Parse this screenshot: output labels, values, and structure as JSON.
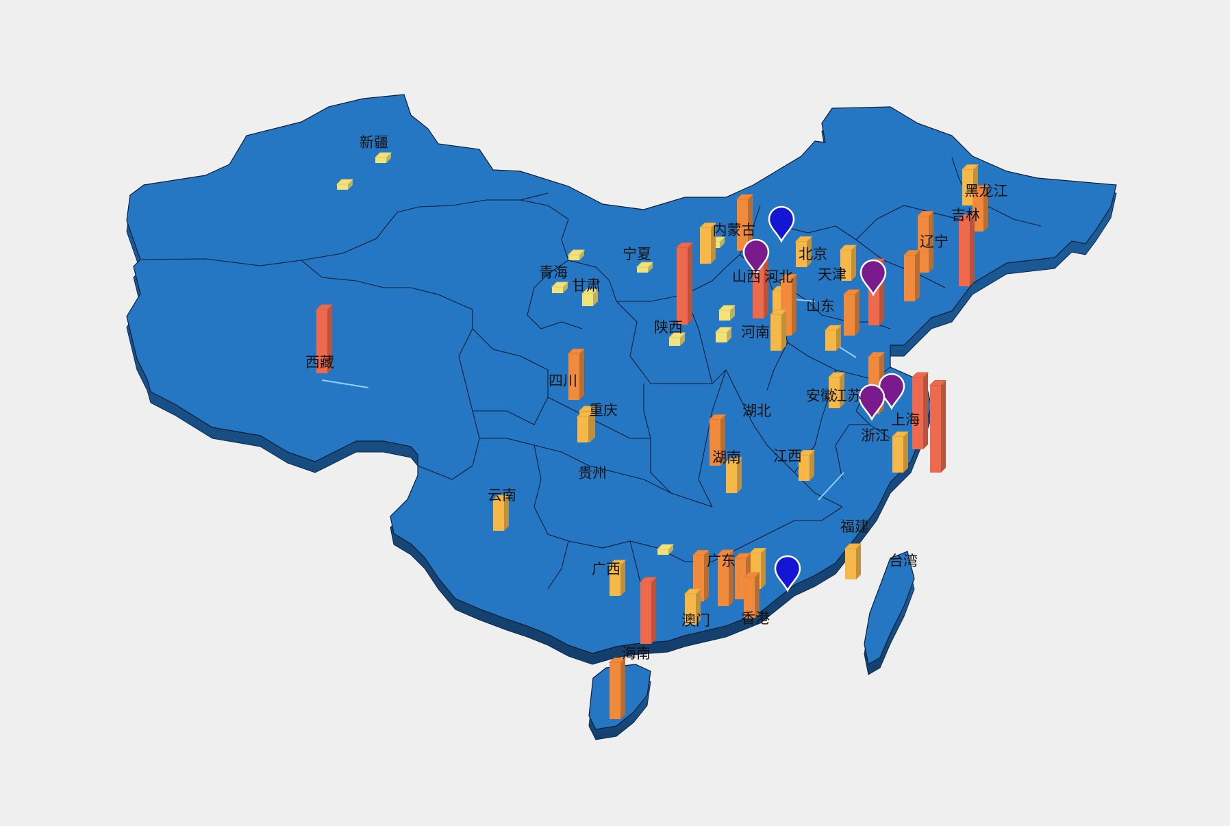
{
  "map": {
    "colors": {
      "land_top": "#2577c3",
      "land_side": "#1a5590",
      "border": "#0b1d33",
      "background": "#efefef",
      "bar_low": "#f2e27a",
      "bar_mid": "#f7b84a",
      "bar_high": "#f08a3c",
      "bar_max": "#ee6a4e",
      "pin_blue": "#1515d4",
      "pin_purple": "#7a1a8c",
      "flow_line": "#8fd2ff"
    },
    "provinces": [
      {
        "key": "xinjiang",
        "name": "新疆"
      },
      {
        "key": "xizang",
        "name": "西藏"
      },
      {
        "key": "qinghai",
        "name": "青海"
      },
      {
        "key": "gansu",
        "name": "甘肃"
      },
      {
        "key": "ningxia",
        "name": "宁夏"
      },
      {
        "key": "neimenggu",
        "name": "内蒙古"
      },
      {
        "key": "heilongjiang",
        "name": "黑龙江"
      },
      {
        "key": "jilin",
        "name": "吉林"
      },
      {
        "key": "liaoning",
        "name": "辽宁"
      },
      {
        "key": "beijing",
        "name": "北京"
      },
      {
        "key": "tianjin",
        "name": "天津"
      },
      {
        "key": "shanxi",
        "name": "山西"
      },
      {
        "key": "hebei",
        "name": "河北"
      },
      {
        "key": "shandong",
        "name": "山东"
      },
      {
        "key": "shaanxi",
        "name": "陕西"
      },
      {
        "key": "henan",
        "name": "河南"
      },
      {
        "key": "sichuan",
        "name": "四川"
      },
      {
        "key": "chongqing",
        "name": "重庆"
      },
      {
        "key": "hubei",
        "name": "湖北"
      },
      {
        "key": "anhui",
        "name": "安徽"
      },
      {
        "key": "jiangsu",
        "name": "江苏"
      },
      {
        "key": "shanghai",
        "name": "上海"
      },
      {
        "key": "zhejiang",
        "name": "浙江"
      },
      {
        "key": "hunan",
        "name": "湖南"
      },
      {
        "key": "jiangxi",
        "name": "江西"
      },
      {
        "key": "guizhou",
        "name": "贵州"
      },
      {
        "key": "yunnan",
        "name": "云南"
      },
      {
        "key": "fujian",
        "name": "福建"
      },
      {
        "key": "taiwan",
        "name": "台湾"
      },
      {
        "key": "guangxi",
        "name": "广西"
      },
      {
        "key": "guangdong",
        "name": "广东"
      },
      {
        "key": "aomen",
        "name": "澳门"
      },
      {
        "key": "xianggang",
        "name": "香港"
      },
      {
        "key": "hainan",
        "name": "海南"
      }
    ],
    "bars": [
      {
        "province": "xinjiang",
        "level": 0.04
      },
      {
        "province": "xinjiang",
        "level": 0.01
      },
      {
        "province": "xizang",
        "level": 0.62
      },
      {
        "province": "qinghai",
        "level": 0.06
      },
      {
        "province": "gansu",
        "level": 0.12
      },
      {
        "province": "gansu",
        "level": 0.05
      },
      {
        "province": "ningxia",
        "level": 0.03
      },
      {
        "province": "neimenggu",
        "level": 0.35
      },
      {
        "province": "neimenggu",
        "level": 0.5
      },
      {
        "province": "neimenggu",
        "level": 0.06
      },
      {
        "province": "shaanxi",
        "level": 0.75
      },
      {
        "province": "shaanxi",
        "level": 0.08
      },
      {
        "province": "shanxi",
        "level": 0.6
      },
      {
        "province": "shanxi",
        "level": 0.1
      },
      {
        "province": "hebei",
        "level": 0.55
      },
      {
        "province": "hebei",
        "level": 0.3
      },
      {
        "province": "beijing",
        "level": 0.25
      },
      {
        "province": "tianjin",
        "level": 0.3
      },
      {
        "province": "heilongjiang",
        "level": 0.35
      },
      {
        "province": "jilin",
        "level": 0.4
      },
      {
        "province": "liaoning",
        "level": 0.65
      },
      {
        "province": "liaoning",
        "level": 0.55
      },
      {
        "province": "liaoning",
        "level": 0.45
      },
      {
        "province": "shandong",
        "level": 0.6
      },
      {
        "province": "shandong",
        "level": 0.4
      },
      {
        "province": "shandong",
        "level": 0.2
      },
      {
        "province": "henan",
        "level": 0.35
      },
      {
        "province": "henan",
        "level": 0.1
      },
      {
        "province": "sichuan",
        "level": 0.45
      },
      {
        "province": "sichuan",
        "level": 0.25
      },
      {
        "province": "chongqing",
        "level": 0.3
      },
      {
        "province": "hubei",
        "level": 0.45
      },
      {
        "province": "hunan",
        "level": 0.3
      },
      {
        "province": "jiangxi",
        "level": 0.25
      },
      {
        "province": "anhui",
        "level": 0.3
      },
      {
        "province": "jiangsu",
        "level": 0.55
      },
      {
        "province": "shanghai",
        "level": 0.7
      },
      {
        "province": "zhejiang",
        "level": 0.85
      },
      {
        "province": "zhejiang",
        "level": 0.35
      },
      {
        "province": "fujian",
        "level": 0.3
      },
      {
        "province": "yunnan",
        "level": 0.3
      },
      {
        "province": "guizhou",
        "level": 0.05
      },
      {
        "province": "guangxi",
        "level": 0.3
      },
      {
        "province": "guangdong",
        "level": 0.45
      },
      {
        "province": "guangdong",
        "level": 0.5
      },
      {
        "province": "guangdong",
        "level": 0.4
      },
      {
        "province": "guangdong",
        "level": 0.35
      },
      {
        "province": "aomen",
        "level": 0.3
      },
      {
        "province": "xianggang",
        "level": 0.4
      },
      {
        "province": "hainan",
        "level": 0.6
      },
      {
        "province": "hainan",
        "level": 0.55
      }
    ],
    "pins": [
      {
        "near": "beijing",
        "color": "blue"
      },
      {
        "near": "shanxi",
        "color": "purple"
      },
      {
        "near": "shandong",
        "color": "purple"
      },
      {
        "near": "shanghai",
        "color": "purple"
      },
      {
        "near": "zhejiang",
        "color": "purple"
      },
      {
        "near": "guangdong",
        "color": "blue"
      }
    ]
  }
}
